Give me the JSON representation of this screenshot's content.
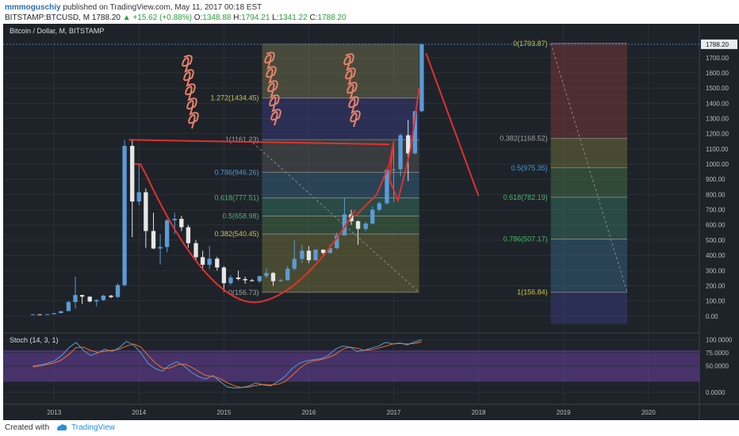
{
  "header": {
    "author": "mmmoguschiy",
    "published_text": "published on TradingView.com, May 11, 2017 00:18 EST",
    "symbol": "BITSTAMP:BTCUSD, M",
    "last": "1788.20",
    "change": "▲ +15.62 (+0.88%)",
    "ohlc": [
      {
        "k": "O:",
        "v": "1348.88"
      },
      {
        "k": "H:",
        "v": "1794.21"
      },
      {
        "k": "L:",
        "v": "1341.22"
      },
      {
        "k": "C:",
        "v": "1788.20"
      }
    ]
  },
  "footer": {
    "created_with": "Created with",
    "brand": "TradingView"
  },
  "colors": {
    "background": "#1e2329",
    "up": "#5b9bd5",
    "down": "#e6e6e6",
    "drawing": "#e0312d",
    "scribble": "#e8826a",
    "stoch_k": "#5b9bd5",
    "stoch_d": "#e8722a",
    "stoch_band": "#6a3fa0"
  },
  "chart_data": [
    {
      "type": "candlestick",
      "title": "Bitcoin / Dollar, M, BITSTAMP",
      "ylim": [
        -100,
        1850
      ],
      "xlim": [
        2012.4,
        2020.6
      ],
      "y_ticks": [
        0,
        100,
        200,
        300,
        400,
        500,
        600,
        700,
        800,
        900,
        1000,
        1100,
        1200,
        1300,
        1400,
        1500,
        1600,
        1700
      ],
      "y_tick_labels": [
        "0.00",
        "100.00",
        "200.00",
        "300.00",
        "400.00",
        "500.00",
        "600.00",
        "700.00",
        "800.00",
        "900.00",
        "1000.00",
        "1100.00",
        "1200.00",
        "1300.00",
        "1400.00",
        "1500.00",
        "1600.00",
        "1700.00"
      ],
      "x_ticks": [
        2013,
        2014,
        2015,
        2016,
        2017,
        2018,
        2019,
        2020
      ],
      "x_tick_labels": [
        "2013",
        "2014",
        "2015",
        "2016",
        "2017",
        "2018",
        "2019",
        "2020"
      ],
      "last_price_label": "1788.20",
      "candles": [
        {
          "t": 2012.75,
          "o": 11,
          "h": 13,
          "l": 10,
          "c": 12
        },
        {
          "t": 2012.83,
          "o": 12,
          "h": 13,
          "l": 10,
          "c": 11
        },
        {
          "t": 2012.92,
          "o": 11,
          "h": 14,
          "l": 11,
          "c": 13
        },
        {
          "t": 2013.0,
          "o": 13,
          "h": 21,
          "l": 13,
          "c": 20
        },
        {
          "t": 2013.08,
          "o": 20,
          "h": 34,
          "l": 19,
          "c": 33
        },
        {
          "t": 2013.17,
          "o": 33,
          "h": 100,
          "l": 33,
          "c": 93
        },
        {
          "t": 2013.25,
          "o": 93,
          "h": 260,
          "l": 50,
          "c": 139
        },
        {
          "t": 2013.33,
          "o": 139,
          "h": 140,
          "l": 80,
          "c": 128
        },
        {
          "t": 2013.42,
          "o": 128,
          "h": 130,
          "l": 90,
          "c": 97
        },
        {
          "t": 2013.5,
          "o": 97,
          "h": 110,
          "l": 65,
          "c": 106
        },
        {
          "t": 2013.58,
          "o": 106,
          "h": 140,
          "l": 100,
          "c": 135
        },
        {
          "t": 2013.67,
          "o": 135,
          "h": 140,
          "l": 118,
          "c": 126
        },
        {
          "t": 2013.75,
          "o": 126,
          "h": 215,
          "l": 120,
          "c": 204
        },
        {
          "t": 2013.83,
          "o": 204,
          "h": 1160,
          "l": 195,
          "c": 1120
        },
        {
          "t": 2013.92,
          "o": 1120,
          "h": 1160,
          "l": 520,
          "c": 754
        },
        {
          "t": 2014.0,
          "o": 754,
          "h": 1000,
          "l": 730,
          "c": 815
        },
        {
          "t": 2014.08,
          "o": 815,
          "h": 840,
          "l": 450,
          "c": 560
        },
        {
          "t": 2014.17,
          "o": 560,
          "h": 680,
          "l": 440,
          "c": 445
        },
        {
          "t": 2014.25,
          "o": 445,
          "h": 540,
          "l": 340,
          "c": 455
        },
        {
          "t": 2014.33,
          "o": 455,
          "h": 640,
          "l": 420,
          "c": 630
        },
        {
          "t": 2014.42,
          "o": 630,
          "h": 680,
          "l": 540,
          "c": 640
        },
        {
          "t": 2014.5,
          "o": 640,
          "h": 660,
          "l": 560,
          "c": 585
        },
        {
          "t": 2014.58,
          "o": 585,
          "h": 600,
          "l": 450,
          "c": 480
        },
        {
          "t": 2014.67,
          "o": 480,
          "h": 500,
          "l": 370,
          "c": 388
        },
        {
          "t": 2014.75,
          "o": 388,
          "h": 430,
          "l": 300,
          "c": 338
        },
        {
          "t": 2014.83,
          "o": 338,
          "h": 460,
          "l": 310,
          "c": 378
        },
        {
          "t": 2014.92,
          "o": 378,
          "h": 390,
          "l": 300,
          "c": 320
        },
        {
          "t": 2015.0,
          "o": 320,
          "h": 330,
          "l": 160,
          "c": 217
        },
        {
          "t": 2015.08,
          "o": 217,
          "h": 270,
          "l": 205,
          "c": 254
        },
        {
          "t": 2015.17,
          "o": 254,
          "h": 300,
          "l": 235,
          "c": 244
        },
        {
          "t": 2015.25,
          "o": 244,
          "h": 260,
          "l": 213,
          "c": 236
        },
        {
          "t": 2015.33,
          "o": 236,
          "h": 245,
          "l": 228,
          "c": 230
        },
        {
          "t": 2015.42,
          "o": 230,
          "h": 265,
          "l": 218,
          "c": 263
        },
        {
          "t": 2015.5,
          "o": 263,
          "h": 315,
          "l": 250,
          "c": 284
        },
        {
          "t": 2015.58,
          "o": 284,
          "h": 290,
          "l": 200,
          "c": 230
        },
        {
          "t": 2015.67,
          "o": 230,
          "h": 245,
          "l": 225,
          "c": 236
        },
        {
          "t": 2015.75,
          "o": 236,
          "h": 330,
          "l": 235,
          "c": 312
        },
        {
          "t": 2015.83,
          "o": 312,
          "h": 500,
          "l": 300,
          "c": 377
        },
        {
          "t": 2015.92,
          "o": 377,
          "h": 470,
          "l": 350,
          "c": 430
        },
        {
          "t": 2016.0,
          "o": 430,
          "h": 460,
          "l": 350,
          "c": 368
        },
        {
          "t": 2016.08,
          "o": 368,
          "h": 440,
          "l": 365,
          "c": 437
        },
        {
          "t": 2016.17,
          "o": 437,
          "h": 440,
          "l": 400,
          "c": 416
        },
        {
          "t": 2016.25,
          "o": 416,
          "h": 470,
          "l": 410,
          "c": 448
        },
        {
          "t": 2016.33,
          "o": 448,
          "h": 550,
          "l": 440,
          "c": 531
        },
        {
          "t": 2016.42,
          "o": 531,
          "h": 780,
          "l": 530,
          "c": 670
        },
        {
          "t": 2016.5,
          "o": 670,
          "h": 700,
          "l": 600,
          "c": 624
        },
        {
          "t": 2016.58,
          "o": 624,
          "h": 630,
          "l": 470,
          "c": 574
        },
        {
          "t": 2016.67,
          "o": 574,
          "h": 620,
          "l": 560,
          "c": 609
        },
        {
          "t": 2016.75,
          "o": 609,
          "h": 720,
          "l": 605,
          "c": 700
        },
        {
          "t": 2016.83,
          "o": 700,
          "h": 755,
          "l": 690,
          "c": 742
        },
        {
          "t": 2016.92,
          "o": 742,
          "h": 970,
          "l": 735,
          "c": 963
        },
        {
          "t": 2017.0,
          "o": 963,
          "h": 1150,
          "l": 750,
          "c": 966
        },
        {
          "t": 2017.08,
          "o": 966,
          "h": 1200,
          "l": 920,
          "c": 1190
        },
        {
          "t": 2017.17,
          "o": 1190,
          "h": 1290,
          "l": 890,
          "c": 1071
        },
        {
          "t": 2017.25,
          "o": 1071,
          "h": 1350,
          "l": 1065,
          "c": 1348
        },
        {
          "t": 2017.33,
          "o": 1348,
          "h": 1794,
          "l": 1341,
          "c": 1788
        }
      ],
      "fib_retracement_left": {
        "levels": [
          {
            "label": "1.272(1434.45)",
            "value": 1434.45
          },
          {
            "label": "1(1161.23)",
            "value": 1161.23
          },
          {
            "label": "0.786(946.26)",
            "value": 946.26
          },
          {
            "label": "0.618(777.51)",
            "value": 777.51
          },
          {
            "label": "0.5(658.98)",
            "value": 658.98
          },
          {
            "label": "0.382(540.45)",
            "value": 540.45
          },
          {
            "label": "0(156.73)",
            "value": 156.73
          }
        ],
        "x_range": [
          2015.45,
          2017.3
        ]
      },
      "fib_retracement_right": {
        "levels": [
          {
            "label": "0(1793.87)",
            "value": 1793.87
          },
          {
            "label": "0.382(1168.52)",
            "value": 1168.52
          },
          {
            "label": "0.5(975.35)",
            "value": 975.35
          },
          {
            "label": "0.618(782.19)",
            "value": 782.19
          },
          {
            "label": "0.786(507.17)",
            "value": 507.17
          },
          {
            "label": "1(156.84)",
            "value": 156.84
          }
        ],
        "x_range": [
          2018.85,
          2019.75
        ]
      }
    },
    {
      "type": "line",
      "title": "Stoch (14, 3, 1)",
      "ylim": [
        -20,
        110
      ],
      "y_ticks": [
        0,
        50,
        75,
        100
      ],
      "y_tick_labels": [
        "0.0000",
        "50.0000",
        "75.0000",
        "100.0000"
      ],
      "series": [
        {
          "values": [
            50,
            52,
            55,
            60,
            70,
            85,
            95,
            80,
            70,
            75,
            82,
            78,
            85,
            97,
            90,
            75,
            55,
            45,
            40,
            52,
            58,
            50,
            38,
            30,
            25,
            32,
            20,
            10,
            8,
            9,
            12,
            18,
            14,
            12,
            20,
            30,
            45,
            55,
            60,
            62,
            64,
            70,
            82,
            88,
            86,
            78,
            80,
            84,
            88,
            95,
            92,
            94,
            90,
            96,
            100
          ]
        },
        {
          "values": [
            48,
            50,
            53,
            56,
            62,
            72,
            85,
            86,
            80,
            76,
            78,
            80,
            82,
            88,
            92,
            86,
            70,
            56,
            46,
            46,
            52,
            54,
            48,
            40,
            32,
            30,
            26,
            18,
            12,
            9,
            10,
            13,
            15,
            14,
            15,
            20,
            32,
            45,
            55,
            60,
            62,
            66,
            72,
            82,
            86,
            84,
            80,
            81,
            84,
            88,
            92,
            93,
            92,
            93,
            96
          ]
        }
      ]
    }
  ]
}
